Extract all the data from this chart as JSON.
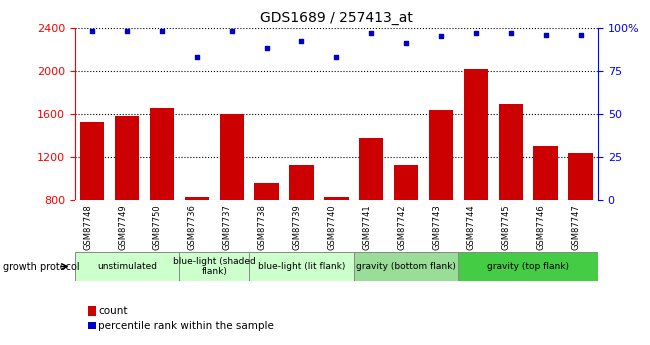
{
  "title": "GDS1689 / 257413_at",
  "samples": [
    "GSM87748",
    "GSM87749",
    "GSM87750",
    "GSM87736",
    "GSM87737",
    "GSM87738",
    "GSM87739",
    "GSM87740",
    "GSM87741",
    "GSM87742",
    "GSM87743",
    "GSM87744",
    "GSM87745",
    "GSM87746",
    "GSM87747"
  ],
  "counts": [
    1520,
    1580,
    1650,
    830,
    1600,
    960,
    1130,
    830,
    1380,
    1130,
    1640,
    2020,
    1690,
    1300,
    1240
  ],
  "percentiles": [
    98,
    98,
    98,
    83,
    98,
    88,
    92,
    83,
    97,
    91,
    95,
    97,
    97,
    96,
    96
  ],
  "ylim_left": [
    800,
    2400
  ],
  "ylim_right": [
    0,
    100
  ],
  "yticks_left": [
    800,
    1200,
    1600,
    2000,
    2400
  ],
  "yticks_right": [
    0,
    25,
    50,
    75,
    100
  ],
  "yticklabels_right": [
    "0",
    "25",
    "50",
    "75",
    "100%"
  ],
  "bar_color": "#CC0000",
  "dot_color": "#0000CC",
  "groups": [
    {
      "label": "unstimulated",
      "indices": [
        0,
        1,
        2
      ],
      "color": "#CCFFCC"
    },
    {
      "label": "blue-light (shaded\nflank)",
      "indices": [
        3,
        4
      ],
      "color": "#CCFFCC"
    },
    {
      "label": "blue-light (lit flank)",
      "indices": [
        5,
        6,
        7
      ],
      "color": "#CCFFCC"
    },
    {
      "label": "gravity (bottom flank)",
      "indices": [
        8,
        9,
        10
      ],
      "color": "#99DD99"
    },
    {
      "label": "gravity (top flank)",
      "indices": [
        11,
        12,
        13,
        14
      ],
      "color": "#44CC44"
    }
  ],
  "tick_label_area_color": "#CCCCCC",
  "group_border_color": "#888888",
  "figsize": [
    6.5,
    3.45
  ],
  "dpi": 100
}
